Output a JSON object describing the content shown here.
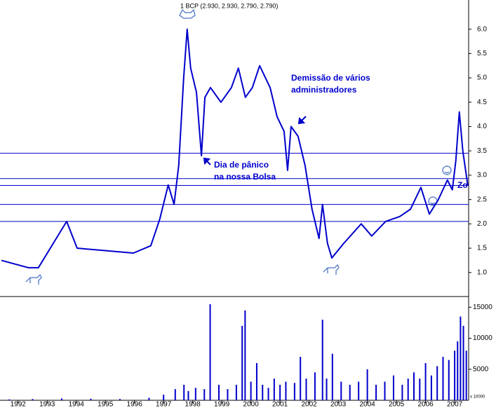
{
  "chart_data": {
    "type": "line",
    "title": "1 BCP (2.930, 2.930, 2.790, 2.790)",
    "annotations": [
      "Demissão de vários",
      "administradores",
      "Dia de pânico",
      "na nossa Bolsa",
      "Zo",
      "x 10000"
    ],
    "x": [
      1991.93,
      1992.85,
      1993.2,
      1994.17,
      1994.53,
      1995.5,
      1996.46,
      1997.06,
      1997.37,
      1997.66,
      1997.86,
      1998.02,
      1998.19,
      1998.31,
      1998.43,
      1998.63,
      1998.8,
      1998.92,
      1999.11,
      1999.47,
      1999.83,
      2000.07,
      2000.31,
      2000.55,
      2000.8,
      2001.16,
      2001.4,
      2001.64,
      2001.76,
      2001.88,
      2002.12,
      2002.36,
      2002.6,
      2002.84,
      2002.96,
      2003.13,
      2003.28,
      2003.69,
      2004.29,
      2004.65,
      2005.13,
      2005.61,
      2005.98,
      2006.34,
      2006.63,
      2006.94,
      2007.25,
      2007.42,
      2007.54,
      2007.66,
      2007.78,
      2007.95
    ],
    "series": [
      {
        "name": "BCP",
        "color": "#0000cc",
        "values": [
          1.25,
          1.1,
          1.1,
          2.05,
          1.5,
          1.45,
          1.4,
          1.55,
          2.1,
          2.8,
          2.4,
          3.2,
          5.0,
          6.0,
          5.2,
          4.7,
          3.4,
          4.6,
          4.8,
          4.5,
          4.8,
          5.2,
          4.6,
          4.8,
          5.25,
          4.8,
          4.2,
          3.9,
          3.1,
          4.0,
          3.8,
          3.2,
          2.3,
          1.7,
          2.4,
          1.6,
          1.3,
          1.6,
          2.0,
          1.75,
          2.05,
          2.15,
          2.3,
          2.75,
          2.2,
          2.5,
          2.9,
          2.7,
          3.3,
          4.3,
          3.5,
          2.79
        ]
      }
    ],
    "hlines": [
      3.45,
      2.93,
      2.79,
      2.4,
      2.05
    ],
    "hline_color": "#0000cc",
    "xlim": [
      1991.88,
      2007.98
    ],
    "xticks": [
      {
        "value": 1992.5,
        "label": "1992"
      },
      {
        "value": 1993.5,
        "label": "1993"
      },
      {
        "value": 1994.5,
        "label": "1994"
      },
      {
        "value": 1995.5,
        "label": "1995"
      },
      {
        "value": 1996.5,
        "label": "1996"
      },
      {
        "value": 1997.5,
        "label": "1997"
      },
      {
        "value": 1998.5,
        "label": "1998"
      },
      {
        "value": 1999.5,
        "label": "1999"
      },
      {
        "value": 2000.5,
        "label": "2000"
      },
      {
        "value": 2001.5,
        "label": "2001"
      },
      {
        "value": 2002.5,
        "label": "2002"
      },
      {
        "value": 2003.5,
        "label": "2003"
      },
      {
        "value": 2004.5,
        "label": "2004"
      },
      {
        "value": 2005.5,
        "label": "2005"
      },
      {
        "value": 2006.5,
        "label": "2006"
      },
      {
        "value": 2007.5,
        "label": "2007"
      }
    ],
    "ylim": [
      0.55,
      6.6
    ],
    "yticks": [
      {
        "value": 1,
        "label": "1.0"
      },
      1.5,
      {
        "value": 2,
        "label": "2.0"
      },
      2.5,
      {
        "value": 3,
        "label": "3.0"
      },
      3.5,
      {
        "value": 4,
        "label": "4.0"
      },
      4.5,
      {
        "value": 5,
        "label": "5.0"
      },
      5.5,
      {
        "value": 6,
        "label": "6.0"
      }
    ],
    "volume": {
      "color": "#0000cc",
      "x": [
        1992.2,
        1993.0,
        1994.0,
        1995.0,
        1996.0,
        1997.0,
        1997.5,
        1997.9,
        1998.2,
        1998.35,
        1998.6,
        1998.9,
        1999.1,
        1999.4,
        1999.7,
        2000.0,
        2000.2,
        2000.3,
        2000.5,
        2000.7,
        2000.9,
        2001.1,
        2001.3,
        2001.5,
        2001.7,
        2002.0,
        2002.2,
        2002.4,
        2002.7,
        2002.96,
        2003.1,
        2003.3,
        2003.6,
        2003.9,
        2004.2,
        2004.5,
        2004.8,
        2005.1,
        2005.4,
        2005.7,
        2005.9,
        2006.1,
        2006.3,
        2006.5,
        2006.7,
        2006.9,
        2007.1,
        2007.3,
        2007.5,
        2007.6,
        2007.7,
        2007.8,
        2007.9
      ],
      "values": [
        150,
        200,
        300,
        250,
        200,
        400,
        900,
        1800,
        2500,
        1500,
        2000,
        1800,
        15500,
        2500,
        1800,
        2500,
        12000,
        14500,
        3000,
        6000,
        2500,
        2000,
        3500,
        2500,
        3000,
        2800,
        7000,
        3500,
        4500,
        13000,
        3500,
        7500,
        3000,
        2500,
        3000,
        5000,
        2500,
        3000,
        4000,
        2500,
        3500,
        4500,
        3500,
        6000,
        4000,
        5500,
        7000,
        6500,
        8000,
        9500,
        13500,
        12000,
        8000
      ]
    },
    "vlim": [
      0,
      16500
    ],
    "vticks": [
      5000,
      10000,
      15000
    ]
  }
}
